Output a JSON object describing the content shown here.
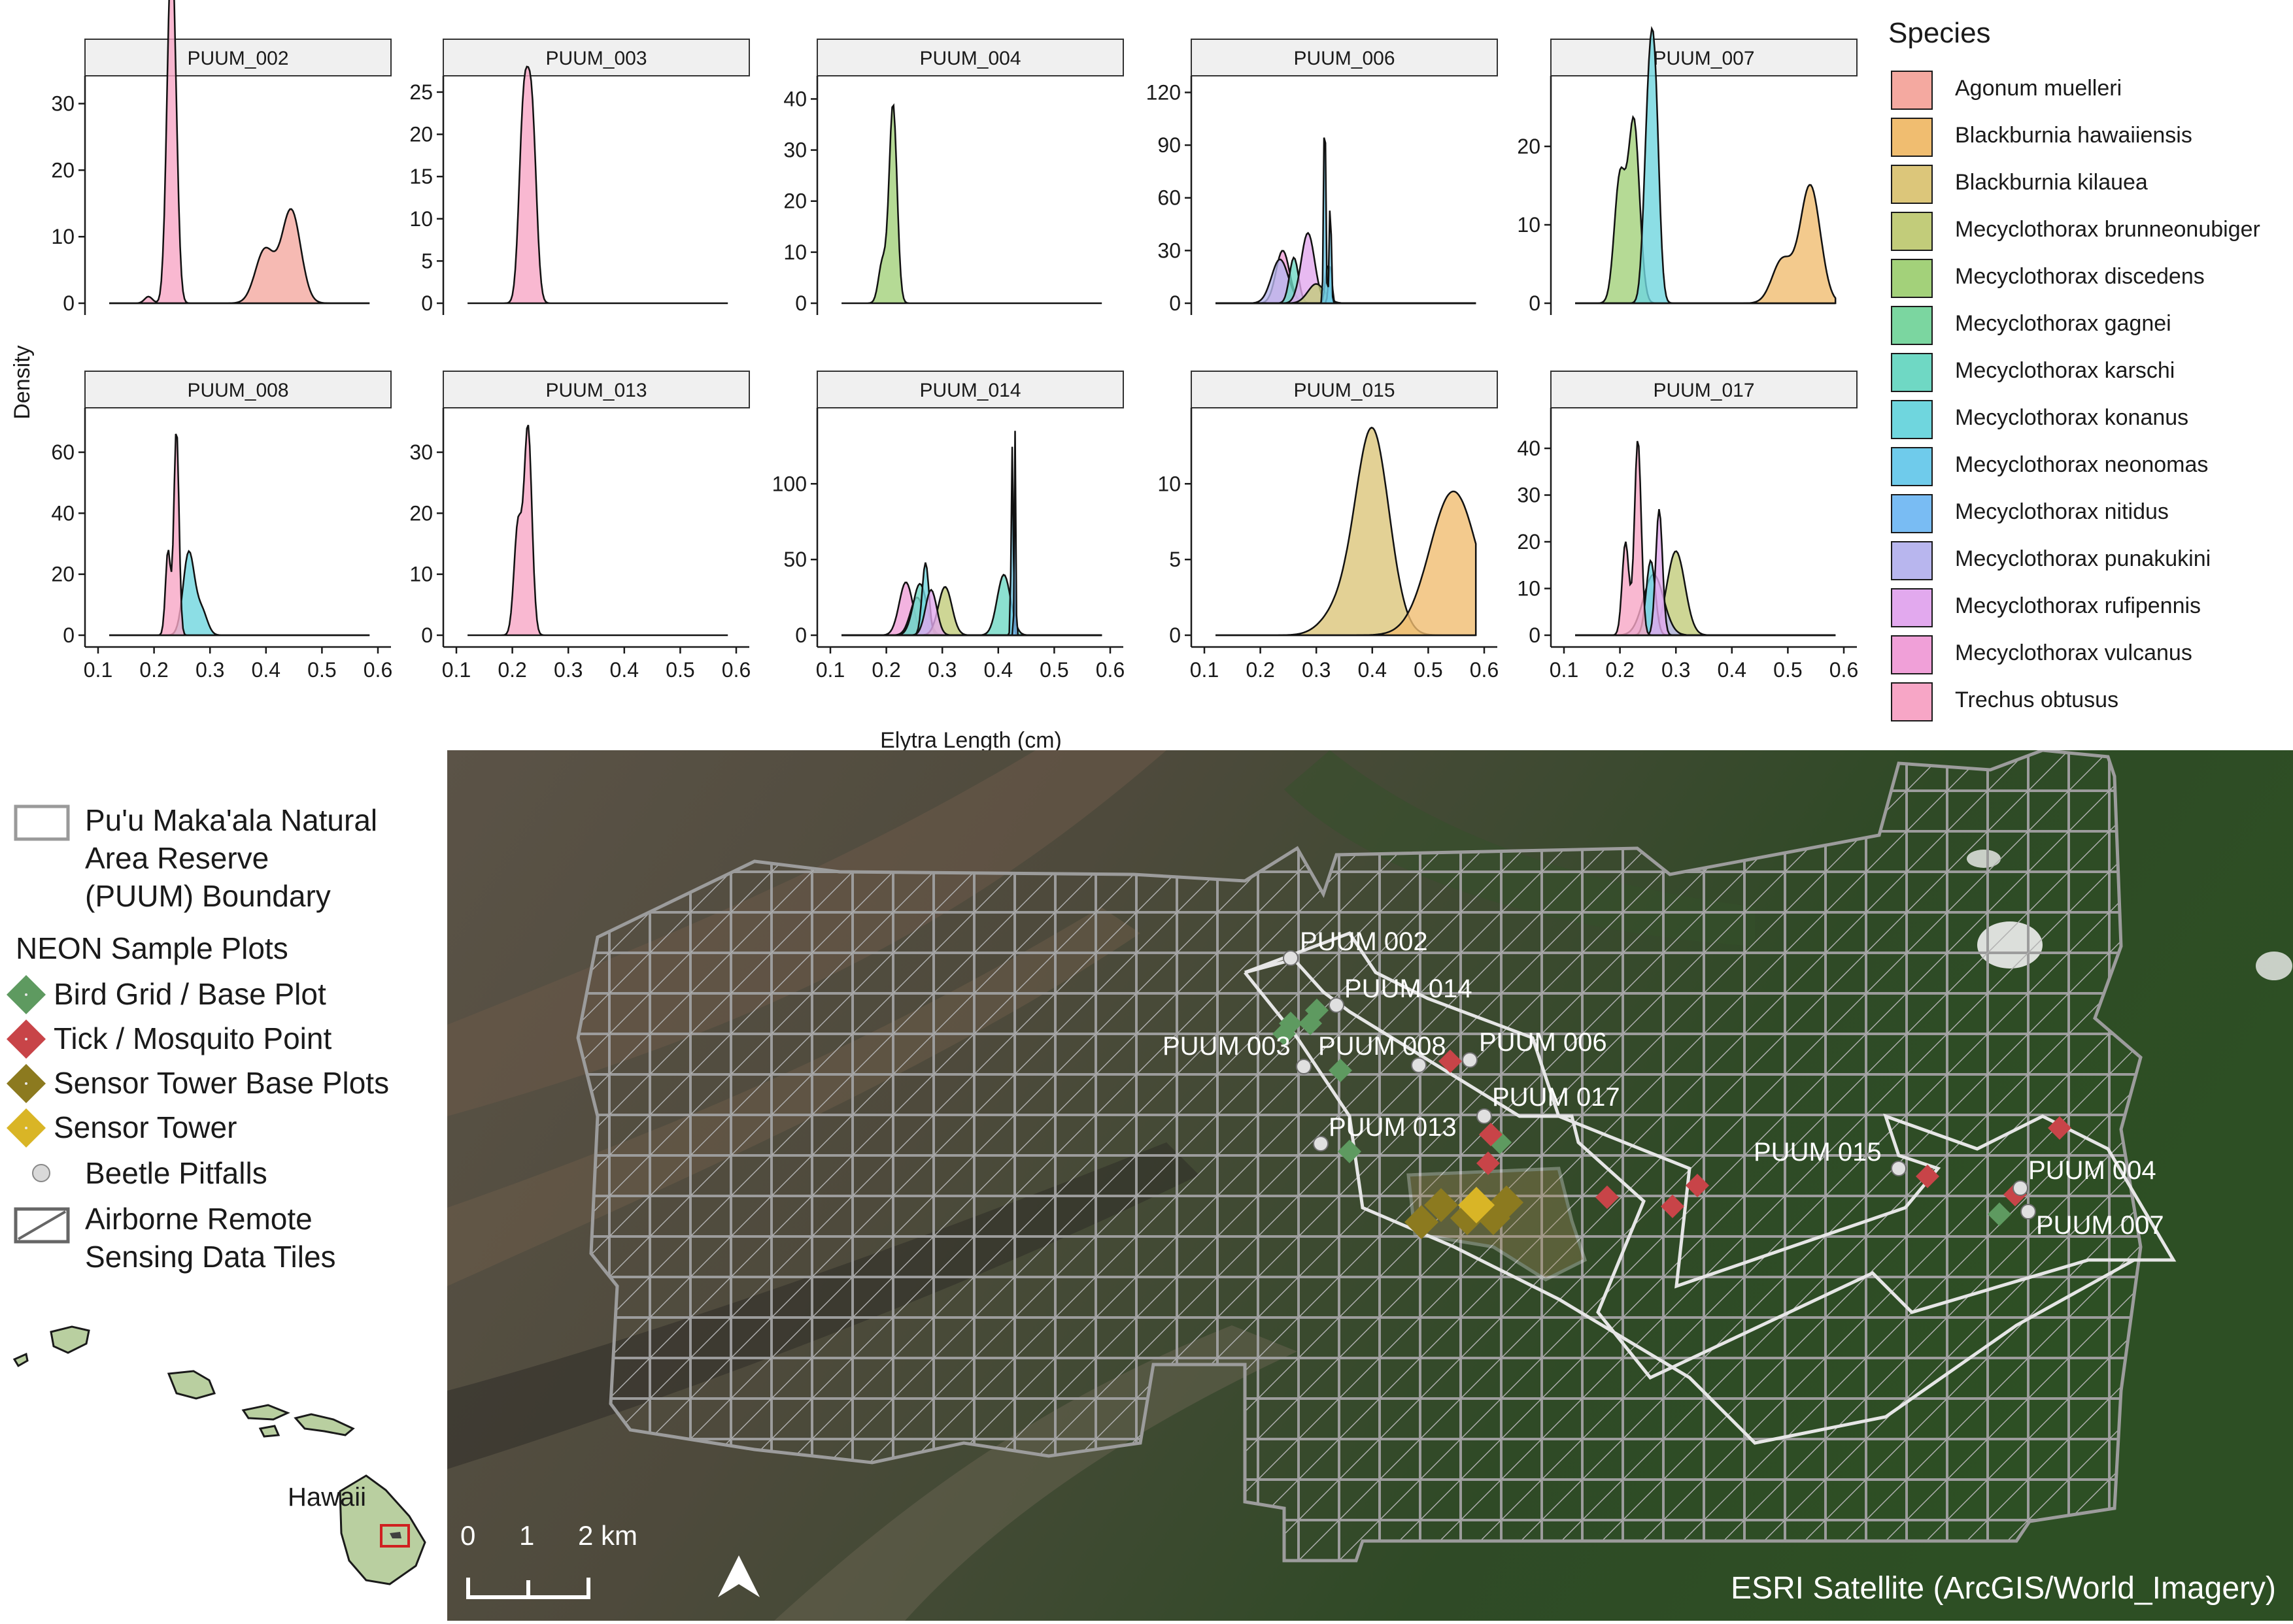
{
  "chart_data": {
    "type": "area",
    "subtype": "faceted density plot",
    "xlabel": "Elytra Length (cm)",
    "ylabel": "Density",
    "xlim": [
      0.1,
      0.6
    ],
    "x_ticks": [
      "0.1",
      "0.2",
      "0.3",
      "0.4",
      "0.5",
      "0.6"
    ],
    "legend_title": "Species",
    "legend_position": "right",
    "grid": false,
    "species": [
      {
        "name": "Agonum muelleri",
        "color": "#F4A9A0"
      },
      {
        "name": "Blackburnia hawaiiensis",
        "color": "#F0BD70"
      },
      {
        "name": "Blackburnia kilauea",
        "color": "#DCC67A"
      },
      {
        "name": "Mecyclothorax brunneonubiger",
        "color": "#C2CC7A"
      },
      {
        "name": "Mecyclothorax discedens",
        "color": "#A3D17A"
      },
      {
        "name": "Mecyclothorax gagnei",
        "color": "#7BD6A0"
      },
      {
        "name": "Mecyclothorax karschi",
        "color": "#6FD8C4"
      },
      {
        "name": "Mecyclothorax konanus",
        "color": "#6FD6DE"
      },
      {
        "name": "Mecyclothorax neonomas",
        "color": "#6FCBEB"
      },
      {
        "name": "Mecyclothorax nitidus",
        "color": "#79BCF3"
      },
      {
        "name": "Mecyclothorax punakukini",
        "color": "#B8B6EE"
      },
      {
        "name": "Mecyclothorax rufipennis",
        "color": "#E2A9EE"
      },
      {
        "name": "Mecyclothorax vulcanus",
        "color": "#F0A0D8"
      },
      {
        "name": "Trechus obtusus",
        "color": "#F7A6C6"
      }
    ],
    "facets": [
      {
        "label": "PUUM_002",
        "ymax": 33,
        "y_ticks": [
          0,
          10,
          20,
          30
        ],
        "series": [
          {
            "species": "Trechus obtusus",
            "peaks": [
              [
                0.19,
                1
              ],
              [
                0.228,
                31
              ],
              [
                0.235,
                30
              ]
            ],
            "sd": 0.007
          },
          {
            "species": "Agonum muelleri",
            "peaks": [
              [
                0.398,
                8
              ],
              [
                0.445,
                14
              ]
            ],
            "sd": 0.017
          }
        ]
      },
      {
        "label": "PUUM_003",
        "ymax": 26,
        "y_ticks": [
          0,
          5,
          10,
          15,
          20,
          25
        ],
        "series": [
          {
            "species": "Trechus obtusus",
            "peaks": [
              [
                0.22,
                22
              ],
              [
                0.235,
                21.5
              ]
            ],
            "sd": 0.008
          }
        ]
      },
      {
        "label": "PUUM_004",
        "ymax": 43,
        "y_ticks": [
          0,
          10,
          20,
          30,
          40
        ],
        "series": [
          {
            "species": "Mecyclothorax discedens",
            "peaks": [
              [
                0.193,
                8
              ],
              [
                0.212,
                39
              ]
            ],
            "sd": 0.007
          }
        ]
      },
      {
        "label": "PUUM_006",
        "ymax": 125,
        "y_ticks": [
          0,
          30,
          60,
          90,
          120
        ],
        "series": [
          {
            "species": "Mecyclothorax vulcanus",
            "peaks": [
              [
                0.24,
                30
              ]
            ],
            "sd": 0.012
          },
          {
            "species": "Mecyclothorax punakukini",
            "peaks": [
              [
                0.235,
                25
              ]
            ],
            "sd": 0.015
          },
          {
            "species": "Mecyclothorax karschi",
            "peaks": [
              [
                0.26,
                26
              ]
            ],
            "sd": 0.008
          },
          {
            "species": "Mecyclothorax rufipennis",
            "peaks": [
              [
                0.285,
                40
              ]
            ],
            "sd": 0.012
          },
          {
            "species": "Mecyclothorax brunneonubiger",
            "peaks": [
              [
                0.3,
                11
              ]
            ],
            "sd": 0.015
          },
          {
            "species": "Mecyclothorax gagnei",
            "peaks": [
              [
                0.32,
                22
              ]
            ],
            "sd": 0.004
          },
          {
            "species": "Mecyclothorax konanus",
            "peaks": [
              [
                0.325,
                22
              ]
            ],
            "sd": 0.003
          },
          {
            "species": "Mecyclothorax neonomas",
            "peaks": [
              [
                0.315,
                120
              ],
              [
                0.325,
                60
              ]
            ],
            "sd": 0.0018
          }
        ]
      },
      {
        "label": "PUUM_007",
        "ymax": 28,
        "y_ticks": [
          0,
          10,
          20
        ],
        "series": [
          {
            "species": "Mecyclothorax discedens",
            "peaks": [
              [
                0.2,
                16
              ],
              [
                0.225,
                23
              ]
            ],
            "sd": 0.01
          },
          {
            "species": "Mecyclothorax konanus",
            "peaks": [
              [
                0.25,
                20
              ],
              [
                0.262,
                26
              ]
            ],
            "sd": 0.008
          },
          {
            "species": "Blackburnia hawaiiensis",
            "peaks": [
              [
                0.49,
                5.5
              ],
              [
                0.54,
                15
              ]
            ],
            "sd": 0.018
          }
        ]
      },
      {
        "label": "PUUM_008",
        "ymax": 72,
        "y_ticks": [
          0,
          20,
          40,
          60
        ],
        "series": [
          {
            "species": "Mecyclothorax konanus",
            "peaks": [
              [
                0.262,
                27
              ],
              [
                0.285,
                8
              ]
            ],
            "sd": 0.01
          },
          {
            "species": "Trechus obtusus",
            "peaks": [
              [
                0.225,
                28
              ],
              [
                0.24,
                68
              ]
            ],
            "sd": 0.0045
          }
        ]
      },
      {
        "label": "PUUM_013",
        "ymax": 36,
        "y_ticks": [
          0,
          10,
          20,
          30
        ],
        "series": [
          {
            "species": "Trechus obtusus",
            "peaks": [
              [
                0.21,
                18
              ],
              [
                0.228,
                34
              ]
            ],
            "sd": 0.007
          }
        ]
      },
      {
        "label": "PUUM_014",
        "ymax": 145,
        "y_ticks": [
          0,
          50,
          100
        ],
        "series": [
          {
            "species": "Mecyclothorax vulcanus",
            "peaks": [
              [
                0.235,
                35
              ]
            ],
            "sd": 0.012
          },
          {
            "species": "Mecyclothorax punakukini",
            "peaks": [
              [
                0.255,
                25
              ]
            ],
            "sd": 0.012
          },
          {
            "species": "Mecyclothorax karschi",
            "peaks": [
              [
                0.26,
                34
              ],
              [
                0.41,
                40
              ]
            ],
            "sd": 0.012
          },
          {
            "species": "Mecyclothorax konanus",
            "peaks": [
              [
                0.27,
                48
              ]
            ],
            "sd": 0.006
          },
          {
            "species": "Mecyclothorax brunneonubiger",
            "peaks": [
              [
                0.305,
                32
              ]
            ],
            "sd": 0.012
          },
          {
            "species": "Mecyclothorax rufipennis",
            "peaks": [
              [
                0.28,
                30
              ]
            ],
            "sd": 0.01
          },
          {
            "species": "Mecyclothorax neonomas",
            "peaks": [
              [
                0.425,
                125
              ]
            ],
            "sd": 0.0018
          },
          {
            "species": "Mecyclothorax nitidus",
            "peaks": [
              [
                0.43,
                135
              ]
            ],
            "sd": 0.0012
          }
        ]
      },
      {
        "label": "PUUM_015",
        "ymax": 14.5,
        "y_ticks": [
          0,
          5,
          10
        ],
        "series": [
          {
            "species": "Blackburnia kilauea",
            "peaks": [
              [
                0.4,
                13.5
              ],
              [
                0.34,
                1.5
              ]
            ],
            "sd": 0.03
          },
          {
            "species": "Blackburnia hawaiiensis",
            "peaks": [
              [
                0.545,
                9.5
              ]
            ],
            "sd": 0.042
          }
        ]
      },
      {
        "label": "PUUM_017",
        "ymax": 47,
        "y_ticks": [
          0,
          10,
          20,
          30,
          40
        ],
        "series": [
          {
            "species": "Mecyclothorax brunneonubiger",
            "peaks": [
              [
                0.3,
                18
              ]
            ],
            "sd": 0.016
          },
          {
            "species": "Mecyclothorax punakukini",
            "peaks": [
              [
                0.26,
                13
              ]
            ],
            "sd": 0.018
          },
          {
            "species": "Mecyclothorax konanus",
            "peaks": [
              [
                0.255,
                16
              ]
            ],
            "sd": 0.008
          },
          {
            "species": "Mecyclothorax rufipennis",
            "peaks": [
              [
                0.27,
                27
              ]
            ],
            "sd": 0.006
          },
          {
            "species": "Trechus obtusus",
            "peaks": [
              [
                0.21,
                20
              ],
              [
                0.232,
                42
              ]
            ],
            "sd": 0.006
          }
        ]
      }
    ]
  },
  "map": {
    "legend": {
      "boundary": "Pu'u Maka'ala Natural Area Reserve (PUUM) Boundary",
      "boundary_lines": [
        "Pu'u Maka'ala Natural",
        "Area Reserve",
        "(PUUM) Boundary"
      ],
      "plots_heading": "NEON Sample Plots",
      "plot_types": [
        {
          "label": "Bird Grid / Base Plot",
          "color": "#5E9A60"
        },
        {
          "label": "Tick / Mosquito Point",
          "color": "#C84448"
        },
        {
          "label": "Sensor Tower Base Plots",
          "color": "#8C7A1F"
        },
        {
          "label": "Sensor Tower",
          "color": "#D9B526"
        }
      ],
      "pitfall_label": "Beetle Pitfalls",
      "tiles_label": "Airborne Remote Sensing Data Tiles",
      "tiles_lines": [
        "Airborne Remote",
        "Sensing Data Tiles"
      ]
    },
    "inset_label": "Hawaii",
    "scale_bar": {
      "labels": [
        "0",
        "1",
        "2 km"
      ]
    },
    "north_arrow": "north-arrow",
    "credit": "ESRI Satellite (ArcGIS/World_Imagery)",
    "pitfall_labels": [
      "PUUM 002",
      "PUUM 014",
      "PUUM 003",
      "PUUM 008",
      "PUUM 006",
      "PUUM 017",
      "PUUM 013",
      "PUUM 015",
      "PUUM 004",
      "PUUM 007"
    ]
  }
}
